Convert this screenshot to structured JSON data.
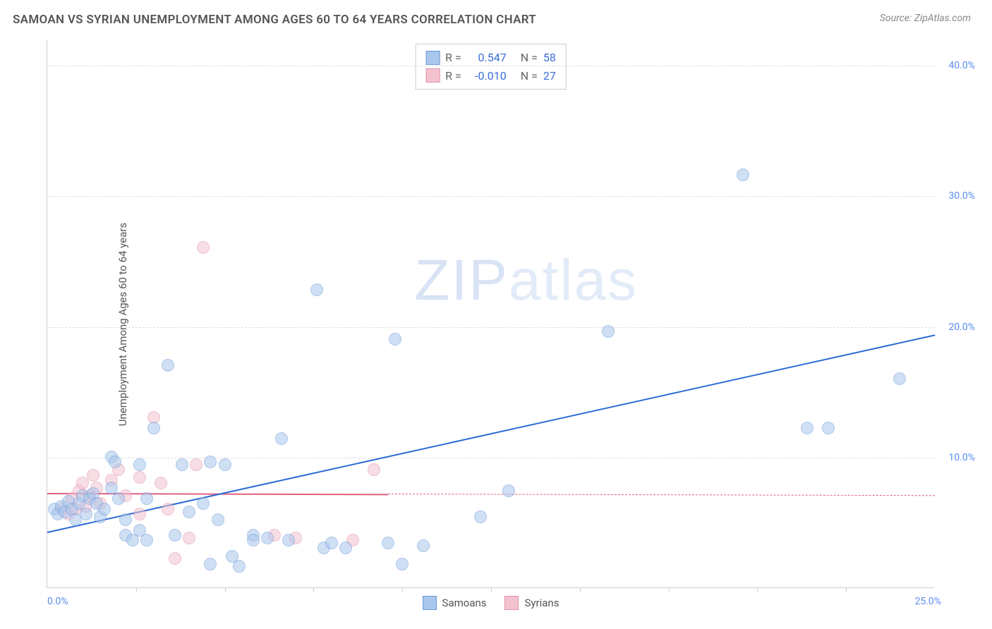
{
  "header": {
    "title": "SAMOAN VS SYRIAN UNEMPLOYMENT AMONG AGES 60 TO 64 YEARS CORRELATION CHART",
    "source": "Source: ZipAtlas.com"
  },
  "chart": {
    "type": "scatter",
    "ylabel": "Unemployment Among Ages 60 to 64 years",
    "xlim": [
      0,
      25
    ],
    "ylim": [
      0,
      42
    ],
    "xticks_minor": [
      2.5,
      5,
      7.5,
      10,
      12.5,
      15,
      17.5,
      20,
      22.5
    ],
    "xtick_origin": "0.0%",
    "xtick_max": "25.0%",
    "yticks": [
      {
        "v": 10,
        "label": "10.0%"
      },
      {
        "v": 20,
        "label": "20.0%"
      },
      {
        "v": 30,
        "label": "30.0%"
      },
      {
        "v": 40,
        "label": "40.0%"
      }
    ],
    "grid_color": "#dddddd",
    "background": "#ffffff",
    "marker_radius": 9,
    "marker_opacity": 0.55,
    "watermark": "ZIPatlas",
    "series": {
      "samoans": {
        "label": "Samoans",
        "fill": "#a9c6ec",
        "stroke": "#6a9ad8",
        "trend_color": "#2e6bd6",
        "trend": {
          "x1": 0,
          "y1": 4.3,
          "x2": 25,
          "y2": 19.4,
          "solid_until_x": 25
        },
        "r_label": "R =",
        "r_value": "0.547",
        "n_label": "N =",
        "n_value": "58",
        "points": [
          [
            0.2,
            6.0
          ],
          [
            0.3,
            5.6
          ],
          [
            0.4,
            6.2
          ],
          [
            0.5,
            5.8
          ],
          [
            0.6,
            6.6
          ],
          [
            0.7,
            6.0
          ],
          [
            0.8,
            5.2
          ],
          [
            0.9,
            6.4
          ],
          [
            1.0,
            7.0
          ],
          [
            1.1,
            5.6
          ],
          [
            1.2,
            6.8
          ],
          [
            1.3,
            7.2
          ],
          [
            1.4,
            6.4
          ],
          [
            1.5,
            5.4
          ],
          [
            1.6,
            6.0
          ],
          [
            1.8,
            7.6
          ],
          [
            1.8,
            10.0
          ],
          [
            1.9,
            9.6
          ],
          [
            2.0,
            6.8
          ],
          [
            2.2,
            5.2
          ],
          [
            2.2,
            4.0
          ],
          [
            2.4,
            3.6
          ],
          [
            2.6,
            9.4
          ],
          [
            2.6,
            4.4
          ],
          [
            2.8,
            3.6
          ],
          [
            2.8,
            6.8
          ],
          [
            3.0,
            12.2
          ],
          [
            3.4,
            17.0
          ],
          [
            3.6,
            4.0
          ],
          [
            3.8,
            9.4
          ],
          [
            4.0,
            5.8
          ],
          [
            4.4,
            6.4
          ],
          [
            4.6,
            9.6
          ],
          [
            4.6,
            1.8
          ],
          [
            4.8,
            5.2
          ],
          [
            5.0,
            9.4
          ],
          [
            5.2,
            2.4
          ],
          [
            5.4,
            1.6
          ],
          [
            5.8,
            4.0
          ],
          [
            5.8,
            3.6
          ],
          [
            6.2,
            3.8
          ],
          [
            6.6,
            11.4
          ],
          [
            6.8,
            3.6
          ],
          [
            7.6,
            22.8
          ],
          [
            7.8,
            3.0
          ],
          [
            8.0,
            3.4
          ],
          [
            8.4,
            3.0
          ],
          [
            9.6,
            3.4
          ],
          [
            9.8,
            19.0
          ],
          [
            10.0,
            1.8
          ],
          [
            10.6,
            3.2
          ],
          [
            12.2,
            5.4
          ],
          [
            13.0,
            7.4
          ],
          [
            15.8,
            19.6
          ],
          [
            19.6,
            31.6
          ],
          [
            21.4,
            12.2
          ],
          [
            22.0,
            12.2
          ],
          [
            24.0,
            16.0
          ]
        ]
      },
      "syrians": {
        "label": "Syrians",
        "fill": "#f2c2cf",
        "stroke": "#e190a8",
        "trend_color": "#e0607f",
        "trend": {
          "x1": 0,
          "y1": 7.3,
          "x2": 25,
          "y2": 7.1,
          "solid_until_x": 9.6
        },
        "r_label": "R =",
        "r_value": "-0.010",
        "n_label": "N =",
        "n_value": "27",
        "points": [
          [
            0.4,
            6.0
          ],
          [
            0.6,
            5.6
          ],
          [
            0.7,
            6.8
          ],
          [
            0.8,
            6.0
          ],
          [
            0.9,
            7.4
          ],
          [
            1.0,
            8.0
          ],
          [
            1.1,
            6.2
          ],
          [
            1.2,
            7.0
          ],
          [
            1.3,
            8.6
          ],
          [
            1.4,
            7.6
          ],
          [
            1.5,
            6.4
          ],
          [
            1.8,
            8.2
          ],
          [
            2.0,
            9.0
          ],
          [
            2.2,
            7.0
          ],
          [
            2.6,
            8.4
          ],
          [
            2.6,
            5.6
          ],
          [
            3.0,
            13.0
          ],
          [
            3.2,
            8.0
          ],
          [
            3.4,
            6.0
          ],
          [
            3.6,
            2.2
          ],
          [
            4.0,
            3.8
          ],
          [
            4.2,
            9.4
          ],
          [
            4.4,
            26.0
          ],
          [
            6.4,
            4.0
          ],
          [
            7.0,
            3.8
          ],
          [
            8.6,
            3.6
          ],
          [
            9.2,
            9.0
          ]
        ]
      }
    }
  }
}
